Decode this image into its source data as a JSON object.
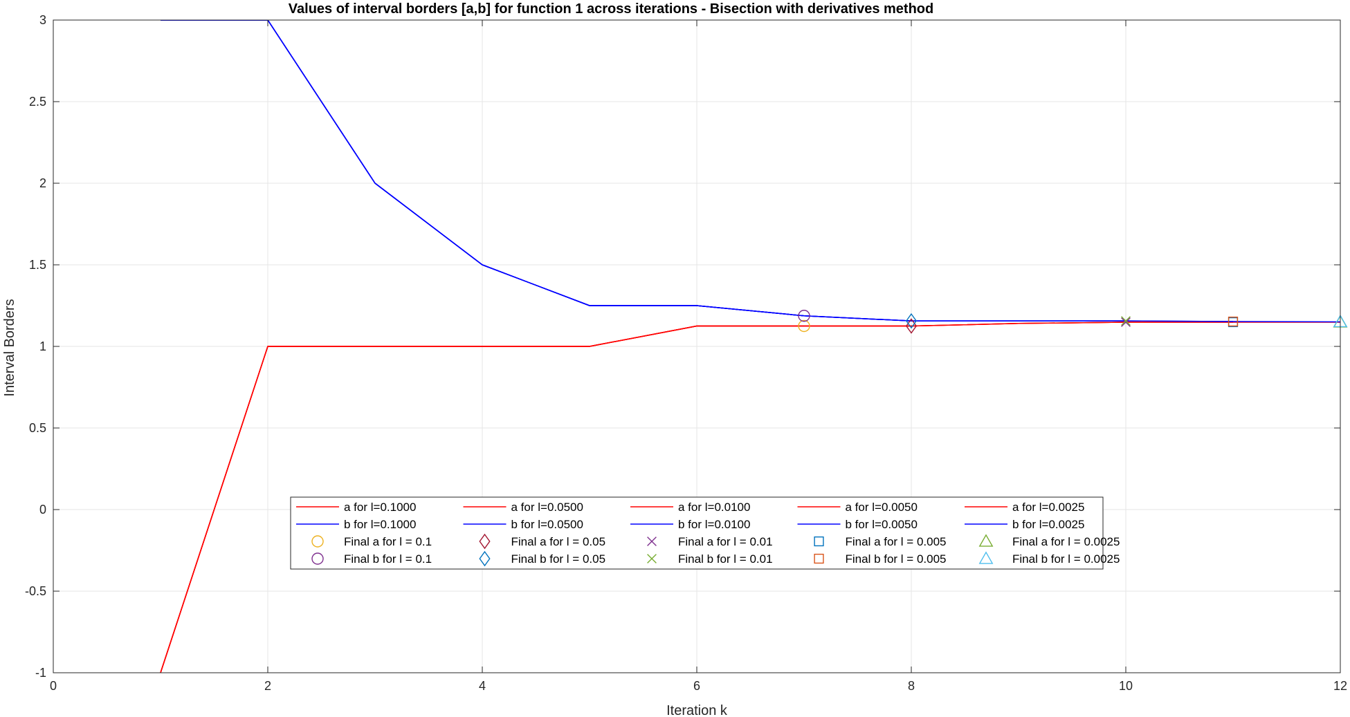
{
  "chart_data": {
    "type": "line",
    "title": "Values of interval borders [a,b] for function 1 across iterations - Bisection with derivatives method",
    "xlabel": "Iteration k",
    "ylabel": "Interval Borders",
    "xlim": [
      0,
      12
    ],
    "ylim": [
      -1,
      3
    ],
    "xticks": [
      0,
      2,
      4,
      6,
      8,
      10,
      12
    ],
    "xtick_labels": [
      "0",
      "2",
      "4",
      "6",
      "8",
      "10",
      "12"
    ],
    "yticks": [
      -1,
      -0.5,
      0,
      0.5,
      1,
      1.5,
      2,
      2.5,
      3
    ],
    "ytick_labels": [
      "-1",
      "-0.5",
      "0",
      "0.5",
      "1",
      "1.5",
      "2",
      "2.5",
      "3"
    ],
    "grid": true,
    "legend_position": "lower-center",
    "legend_columns": 5,
    "series": [
      {
        "name": "a for l=0.1000",
        "kind": "line",
        "color": "#ff0000",
        "x": [
          1,
          2,
          3,
          4,
          5,
          6,
          7
        ],
        "y": [
          -1,
          1,
          1,
          1,
          1,
          1.125,
          1.125
        ]
      },
      {
        "name": "b for l=0.1000",
        "kind": "line",
        "color": "#0000ff",
        "x": [
          1,
          2,
          3,
          4,
          5,
          6,
          7
        ],
        "y": [
          3,
          3,
          2,
          1.5,
          1.25,
          1.25,
          1.1875
        ]
      },
      {
        "name": "a for l=0.0500",
        "kind": "line",
        "color": "#ff0000",
        "x": [
          1,
          2,
          3,
          4,
          5,
          6,
          7,
          8
        ],
        "y": [
          -1,
          1,
          1,
          1,
          1,
          1.125,
          1.125,
          1.125
        ]
      },
      {
        "name": "b for l=0.0500",
        "kind": "line",
        "color": "#0000ff",
        "x": [
          1,
          2,
          3,
          4,
          5,
          6,
          7,
          8
        ],
        "y": [
          3,
          3,
          2,
          1.5,
          1.25,
          1.25,
          1.1875,
          1.15625
        ]
      },
      {
        "name": "a for l=0.0100",
        "kind": "line",
        "color": "#ff0000",
        "x": [
          1,
          2,
          3,
          4,
          5,
          6,
          7,
          8,
          9,
          10
        ],
        "y": [
          -1,
          1,
          1,
          1,
          1,
          1.125,
          1.125,
          1.125,
          1.140625,
          1.1484
        ]
      },
      {
        "name": "b for l=0.0100",
        "kind": "line",
        "color": "#0000ff",
        "x": [
          1,
          2,
          3,
          4,
          5,
          6,
          7,
          8,
          9,
          10
        ],
        "y": [
          3,
          3,
          2,
          1.5,
          1.25,
          1.25,
          1.1875,
          1.15625,
          1.15625,
          1.15625
        ]
      },
      {
        "name": "a for l=0.0050",
        "kind": "line",
        "color": "#ff0000",
        "x": [
          1,
          2,
          3,
          4,
          5,
          6,
          7,
          8,
          9,
          10,
          11
        ],
        "y": [
          -1,
          1,
          1,
          1,
          1,
          1.125,
          1.125,
          1.125,
          1.140625,
          1.1484,
          1.1484
        ]
      },
      {
        "name": "b for l=0.0050",
        "kind": "line",
        "color": "#0000ff",
        "x": [
          1,
          2,
          3,
          4,
          5,
          6,
          7,
          8,
          9,
          10,
          11
        ],
        "y": [
          3,
          3,
          2,
          1.5,
          1.25,
          1.25,
          1.1875,
          1.15625,
          1.15625,
          1.15625,
          1.1523
        ]
      },
      {
        "name": "a for l=0.0025",
        "kind": "line",
        "color": "#ff0000",
        "x": [
          1,
          2,
          3,
          4,
          5,
          6,
          7,
          8,
          9,
          10,
          11,
          12
        ],
        "y": [
          -1,
          1,
          1,
          1,
          1,
          1.125,
          1.125,
          1.125,
          1.140625,
          1.1484,
          1.1484,
          1.1484
        ]
      },
      {
        "name": "b for l=0.0025",
        "kind": "line",
        "color": "#0000ff",
        "x": [
          1,
          2,
          3,
          4,
          5,
          6,
          7,
          8,
          9,
          10,
          11,
          12
        ],
        "y": [
          3,
          3,
          2,
          1.5,
          1.25,
          1.25,
          1.1875,
          1.15625,
          1.15625,
          1.15625,
          1.1523,
          1.1504
        ]
      },
      {
        "name": "Final a for l = 0.1",
        "kind": "marker",
        "marker": "circle",
        "color": "#EDB120",
        "x": [
          7
        ],
        "y": [
          1.125
        ]
      },
      {
        "name": "Final b for l = 0.1",
        "kind": "marker",
        "marker": "circle",
        "color": "#7E2F8E",
        "x": [
          7
        ],
        "y": [
          1.1875
        ]
      },
      {
        "name": "Final a for l = 0.05",
        "kind": "marker",
        "marker": "diamond",
        "color": "#A2142F",
        "x": [
          8
        ],
        "y": [
          1.125
        ]
      },
      {
        "name": "Final b for l = 0.05",
        "kind": "marker",
        "marker": "diamond",
        "color": "#0072BD",
        "x": [
          8
        ],
        "y": [
          1.15625
        ]
      },
      {
        "name": "Final a for l = 0.01",
        "kind": "marker",
        "marker": "x",
        "color": "#7E2F8E",
        "x": [
          10
        ],
        "y": [
          1.1484
        ]
      },
      {
        "name": "Final b for l = 0.01",
        "kind": "marker",
        "marker": "x",
        "color": "#77AC30",
        "x": [
          10
        ],
        "y": [
          1.15625
        ]
      },
      {
        "name": "Final a for l = 0.005",
        "kind": "marker",
        "marker": "square",
        "color": "#0072BD",
        "x": [
          11
        ],
        "y": [
          1.1484
        ]
      },
      {
        "name": "Final b for l = 0.005",
        "kind": "marker",
        "marker": "square",
        "color": "#D95319",
        "x": [
          11
        ],
        "y": [
          1.1523
        ]
      },
      {
        "name": "Final a for l = 0.0025",
        "kind": "marker",
        "marker": "triangle",
        "color": "#77AC30",
        "x": [
          12
        ],
        "y": [
          1.1484
        ]
      },
      {
        "name": "Final b for l = 0.0025",
        "kind": "marker",
        "marker": "triangle",
        "color": "#4DBEEE",
        "x": [
          12
        ],
        "y": [
          1.1504
        ]
      }
    ]
  }
}
